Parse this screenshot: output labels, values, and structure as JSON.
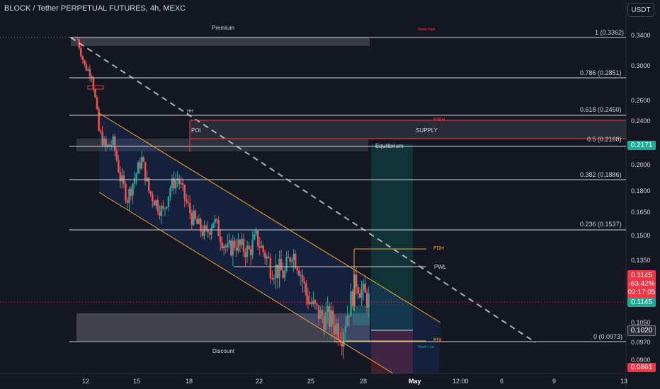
{
  "header": {
    "title": "BLOCK / Tether PERPETUAL FUTURES, 4h, MEXC",
    "currency_button": "USDT"
  },
  "zones": {
    "premium": "Premium",
    "discount": "Discount",
    "equilibrium": "Equilibrium",
    "poi": "POI",
    "supply": "SUPPLY",
    "hh": "HH",
    "pwh": "PWH",
    "pdh": "PDH",
    "pwl": "PWL",
    "pdl": "PDL",
    "week_high": "Week High",
    "week_low": "Week Low"
  },
  "fib_levels": [
    {
      "label": "1 (0.3362)",
      "value": 0.3362
    },
    {
      "label": "0.786 (0.2851)",
      "value": 0.2851
    },
    {
      "label": "0.618 (0.2450)",
      "value": 0.245
    },
    {
      "label": "0.5 (0.2168)",
      "value": 0.2168
    },
    {
      "label": "0.382 (0.1886)",
      "value": 0.1886
    },
    {
      "label": "0.236 (0.1537)",
      "value": 0.1537
    },
    {
      "label": "0 (0.0973)",
      "value": 0.0973
    }
  ],
  "price_axis": {
    "ticks": [
      "0.3400",
      "0.3000",
      "0.2600",
      "0.2400",
      "0.2000",
      "0.1800",
      "0.1650",
      "0.1500",
      "0.1350",
      "0.1050",
      "0.0970",
      "0.0900"
    ]
  },
  "time_axis": {
    "ticks": [
      "12",
      "15",
      "18",
      "22",
      "25",
      "28",
      "May",
      "12:00",
      "6",
      "9",
      "13"
    ]
  },
  "price_tags": {
    "tp": "0.2171",
    "current_price": "0.1145",
    "current_change": "-63.42%",
    "countdown": "02:17:05",
    "current_repeat": "0.1145",
    "entry": "0.1020",
    "sl": "0.0861"
  },
  "colors": {
    "background": "#131722",
    "up": "#26a69a",
    "down": "#ef5350",
    "channel": "#f5a623",
    "fib": "#d1d4dc",
    "tp_tag": "#22ab94",
    "sl_tag": "#f23645",
    "current_tag": "#22ab94"
  },
  "chart_data": {
    "type": "candlestick",
    "timeframe": "4h",
    "close_path": [
      0.335,
      0.3,
      0.29,
      0.23,
      0.215,
      0.22,
      0.19,
      0.175,
      0.19,
      0.205,
      0.18,
      0.172,
      0.165,
      0.183,
      0.19,
      0.175,
      0.162,
      0.155,
      0.15,
      0.16,
      0.15,
      0.14,
      0.145,
      0.142,
      0.14,
      0.148,
      0.14,
      0.132,
      0.13,
      0.128,
      0.14,
      0.132,
      0.118,
      0.112,
      0.108,
      0.107,
      0.104,
      0.101,
      0.112,
      0.125,
      0.118,
      0.1145
    ]
  }
}
